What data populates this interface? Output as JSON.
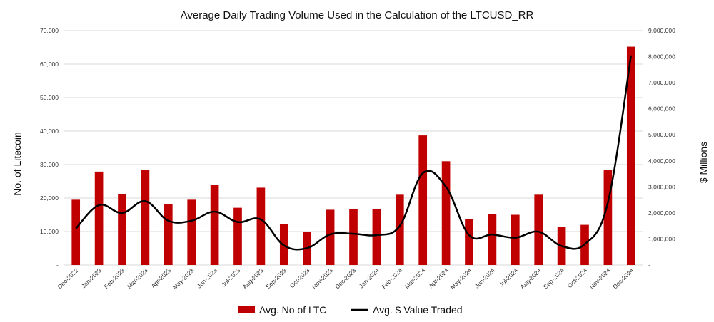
{
  "chart_data": {
    "type": "bar",
    "title": "Average Daily Trading Volume Used in the Calculation of the LTCUSD_RR",
    "xlabel": "",
    "ylabel": "No. of Litecoin",
    "ylabel_right": "$ Millions",
    "ylim": [
      0,
      70000
    ],
    "ylim_right": [
      0,
      9000000
    ],
    "categories": [
      "Dec-2022",
      "Jan-2023",
      "Feb-2023",
      "Mar-2023",
      "Apr-2023",
      "May-2023",
      "Jun-2023",
      "Jul-2023",
      "Aug-2023",
      "Sep-2023",
      "Oct-2023",
      "Nov-2023",
      "Dec-2023",
      "Jan-2024",
      "Feb-2024",
      "Mar-2024",
      "Apr-2024",
      "May-2024",
      "Jun-2024",
      "Jul-2024",
      "Aug-2024",
      "Sep-2024",
      "Oct-2024",
      "Nov-2024",
      "Dec-2024"
    ],
    "y_ticks": [
      "-",
      "10,000",
      "20,000",
      "30,000",
      "40,000",
      "50,000",
      "60,000",
      "70,000"
    ],
    "y_ticks_right": [
      "-",
      "1,000,000",
      "2,000,000",
      "3,000,000",
      "4,000,000",
      "5,000,000",
      "6,000,000",
      "7,000,000",
      "8,000,000",
      "9,000,000"
    ],
    "series": [
      {
        "name": "Avg. No of LTC",
        "type": "bar",
        "axis": "left",
        "color": "#c00000",
        "values": [
          19500,
          27900,
          21100,
          28500,
          18200,
          19500,
          24000,
          17100,
          23100,
          12300,
          9900,
          16500,
          16700,
          16700,
          21000,
          38700,
          31000,
          13800,
          15200,
          15000,
          21000,
          11300,
          12000,
          28500,
          65200
        ]
      },
      {
        "name": "Avg. $ Value Traded",
        "type": "line",
        "axis": "right",
        "color": "#000000",
        "values": [
          1400000,
          2300000,
          2000000,
          2450000,
          1700000,
          1700000,
          2050000,
          1650000,
          1750000,
          750000,
          650000,
          1180000,
          1200000,
          1150000,
          1500000,
          3530000,
          3000000,
          1150000,
          1170000,
          1050000,
          1280000,
          730000,
          800000,
          2400000,
          8050000
        ]
      }
    ],
    "legend": "bottom"
  }
}
